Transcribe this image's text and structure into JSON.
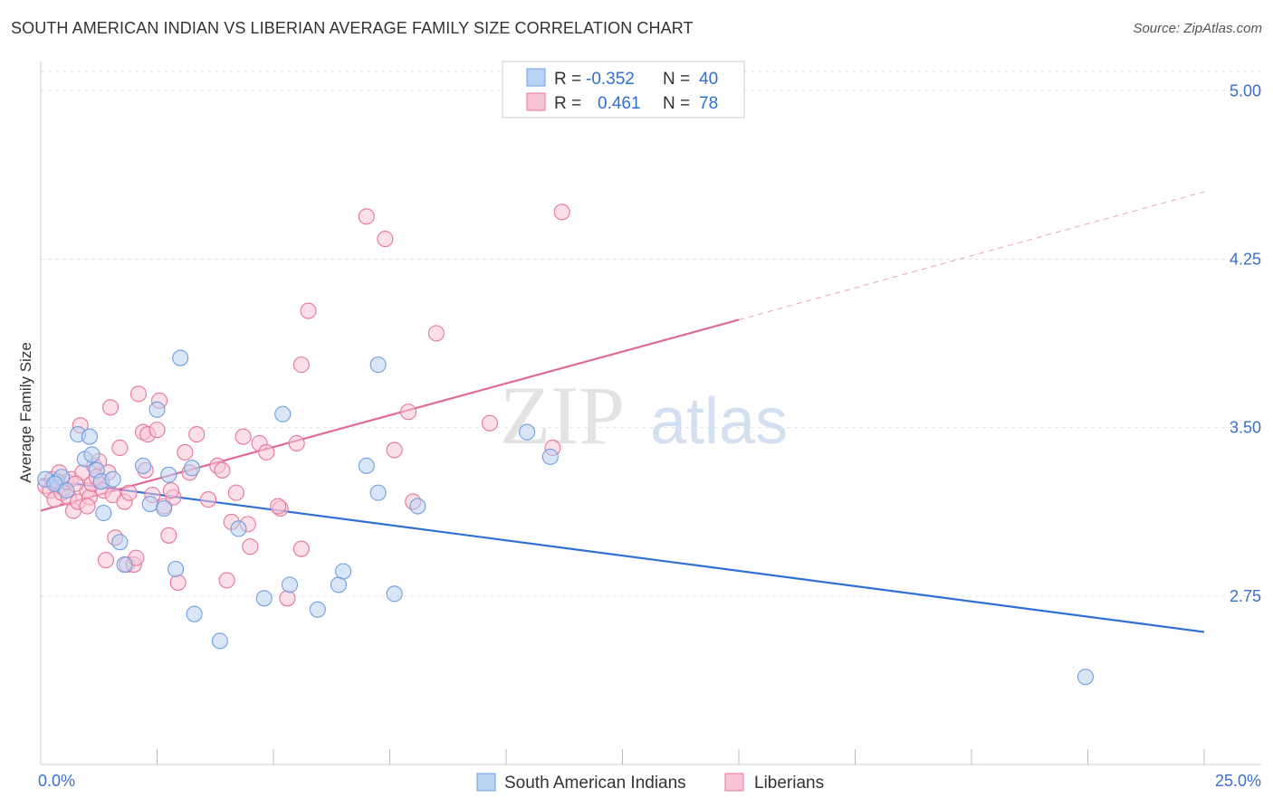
{
  "header": {
    "title": "SOUTH AMERICAN INDIAN VS LIBERIAN AVERAGE FAMILY SIZE CORRELATION CHART",
    "source": "Source: ZipAtlas.com"
  },
  "watermark": {
    "zip": "ZIP",
    "atlas": "atlas"
  },
  "legend": {
    "rows": [
      {
        "r_label": "R =",
        "r_value": "-0.352",
        "n_label": "N =",
        "n_value": "40"
      },
      {
        "r_label": "R =",
        "r_value": "0.461",
        "n_label": "N =",
        "n_value": "78"
      }
    ]
  },
  "chart_data": {
    "type": "scatter",
    "title": "SOUTH AMERICAN INDIAN VS LIBERIAN AVERAGE FAMILY SIZE CORRELATION CHART",
    "ylabel": "Average Family Size",
    "xlabel": "",
    "xlim": [
      0,
      25
    ],
    "ylim": [
      2.0,
      5.13
    ],
    "x_tick_labels": [
      "0.0%",
      "25.0%"
    ],
    "y_ticks": [
      2.75,
      3.5,
      4.25,
      5.0
    ],
    "y_tick_labels": [
      "2.75",
      "3.50",
      "4.25",
      "5.00"
    ],
    "grid": true,
    "legend_position": "top-center",
    "series": [
      {
        "name": "South American Indians",
        "color": "#6f9fe0",
        "fill": "#b9d2f3",
        "R": -0.352,
        "N": 40,
        "trend": {
          "x": [
            0.0,
            25.0
          ],
          "y": [
            3.27,
            2.59
          ]
        },
        "points": [
          [
            0.1,
            3.27
          ],
          [
            0.35,
            3.26
          ],
          [
            0.45,
            3.28
          ],
          [
            0.3,
            3.25
          ],
          [
            0.55,
            3.22
          ],
          [
            0.8,
            3.47
          ],
          [
            0.95,
            3.36
          ],
          [
            1.1,
            3.38
          ],
          [
            1.2,
            3.31
          ],
          [
            1.05,
            3.46
          ],
          [
            1.3,
            3.26
          ],
          [
            1.35,
            3.12
          ],
          [
            1.55,
            3.27
          ],
          [
            1.7,
            2.99
          ],
          [
            1.8,
            2.89
          ],
          [
            2.2,
            3.33
          ],
          [
            2.35,
            3.16
          ],
          [
            2.5,
            3.58
          ],
          [
            2.65,
            3.14
          ],
          [
            2.75,
            3.29
          ],
          [
            2.9,
            2.87
          ],
          [
            3.0,
            3.81
          ],
          [
            3.25,
            3.32
          ],
          [
            3.3,
            2.67
          ],
          [
            3.85,
            2.55
          ],
          [
            4.25,
            3.05
          ],
          [
            4.8,
            2.74
          ],
          [
            5.2,
            3.56
          ],
          [
            5.35,
            2.8
          ],
          [
            5.95,
            2.69
          ],
          [
            6.4,
            2.8
          ],
          [
            6.5,
            2.86
          ],
          [
            7.0,
            3.33
          ],
          [
            7.25,
            3.21
          ],
          [
            7.25,
            3.78
          ],
          [
            7.6,
            2.76
          ],
          [
            8.1,
            3.15
          ],
          [
            10.45,
            3.48
          ],
          [
            10.95,
            3.37
          ],
          [
            22.45,
            2.39
          ]
        ]
      },
      {
        "name": "Liberians",
        "color": "#e8749a",
        "fill": "#f7c4d4",
        "R": 0.461,
        "N": 78,
        "trend": {
          "x": [
            0.0,
            15.0
          ],
          "y": [
            3.13,
            3.98
          ]
        },
        "trend_dashed": {
          "x": [
            15.0,
            25.0
          ],
          "y": [
            3.98,
            4.55
          ]
        },
        "points": [
          [
            0.1,
            3.24
          ],
          [
            0.2,
            3.22
          ],
          [
            0.25,
            3.27
          ],
          [
            0.3,
            3.18
          ],
          [
            0.35,
            3.25
          ],
          [
            0.45,
            3.21
          ],
          [
            0.5,
            3.23
          ],
          [
            0.55,
            3.26
          ],
          [
            0.6,
            3.19
          ],
          [
            0.65,
            3.27
          ],
          [
            0.7,
            3.13
          ],
          [
            0.8,
            3.17
          ],
          [
            0.85,
            3.51
          ],
          [
            0.9,
            3.3
          ],
          [
            1.0,
            3.22
          ],
          [
            1.05,
            3.19
          ],
          [
            1.1,
            3.25
          ],
          [
            1.15,
            3.33
          ],
          [
            1.2,
            3.28
          ],
          [
            1.25,
            3.35
          ],
          [
            1.3,
            3.26
          ],
          [
            1.35,
            3.22
          ],
          [
            1.4,
            2.91
          ],
          [
            1.45,
            3.3
          ],
          [
            1.5,
            3.59
          ],
          [
            1.55,
            3.2
          ],
          [
            1.6,
            3.01
          ],
          [
            1.7,
            3.41
          ],
          [
            1.8,
            3.17
          ],
          [
            1.85,
            2.89
          ],
          [
            1.9,
            3.21
          ],
          [
            2.0,
            2.89
          ],
          [
            2.05,
            2.92
          ],
          [
            2.1,
            3.65
          ],
          [
            2.2,
            3.48
          ],
          [
            2.25,
            3.31
          ],
          [
            2.3,
            3.47
          ],
          [
            2.4,
            3.2
          ],
          [
            2.5,
            3.49
          ],
          [
            2.55,
            3.62
          ],
          [
            2.65,
            3.15
          ],
          [
            2.75,
            3.02
          ],
          [
            2.85,
            3.19
          ],
          [
            2.95,
            2.81
          ],
          [
            3.1,
            3.39
          ],
          [
            3.2,
            3.3
          ],
          [
            3.35,
            3.47
          ],
          [
            3.6,
            3.18
          ],
          [
            3.8,
            3.33
          ],
          [
            3.9,
            3.31
          ],
          [
            4.0,
            2.82
          ],
          [
            4.1,
            3.08
          ],
          [
            4.2,
            3.21
          ],
          [
            4.35,
            3.46
          ],
          [
            4.45,
            3.07
          ],
          [
            4.5,
            2.97
          ],
          [
            4.7,
            3.43
          ],
          [
            4.85,
            3.39
          ],
          [
            5.15,
            3.14
          ],
          [
            5.3,
            2.74
          ],
          [
            5.5,
            3.43
          ],
          [
            5.6,
            3.78
          ],
          [
            5.6,
            2.96
          ],
          [
            5.75,
            4.02
          ],
          [
            7.0,
            4.44
          ],
          [
            7.4,
            4.34
          ],
          [
            7.6,
            3.4
          ],
          [
            7.9,
            3.57
          ],
          [
            8.0,
            3.17
          ],
          [
            8.5,
            3.92
          ],
          [
            9.65,
            3.52
          ],
          [
            11.0,
            3.41
          ],
          [
            11.2,
            4.46
          ],
          [
            5.1,
            3.15
          ],
          [
            0.75,
            3.25
          ],
          [
            1.0,
            3.15
          ],
          [
            0.4,
            3.3
          ],
          [
            2.8,
            3.22
          ]
        ]
      }
    ]
  }
}
